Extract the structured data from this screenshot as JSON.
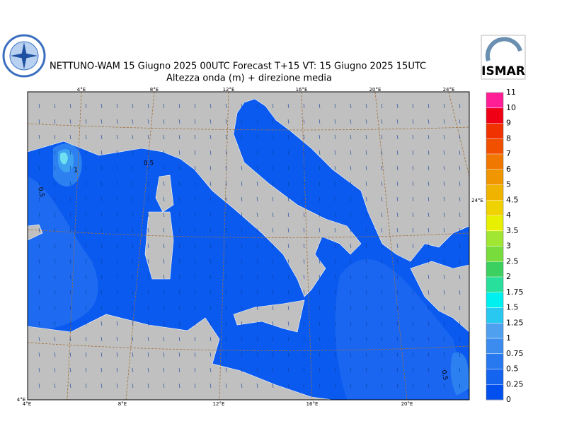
{
  "header": {
    "title": "NETTUNO-WAM  15   Giugno  2025 00UTC Forecast T+15 VT: 15   Giugno  2025 15UTC",
    "subtitle": "Altezza onda (m) + direzione media",
    "logo_right": "ISMAR"
  },
  "graticule": {
    "top": [
      "4°E",
      "8°E",
      "12°E",
      "16°E",
      "20°E",
      "24°E"
    ],
    "bottom": [
      "4°E",
      "8°E",
      "12°E",
      "16°E",
      "20°E"
    ],
    "right": "24°E",
    "corner": "4°E"
  },
  "contour_labels": [
    "0.5",
    "1",
    "0.5",
    "0.5"
  ],
  "colorbar": {
    "ticks": [
      0,
      0.25,
      0.5,
      0.75,
      1,
      1.25,
      1.5,
      1.75,
      2,
      2.5,
      3,
      3.5,
      4,
      4.5,
      5,
      6,
      7,
      8,
      9,
      10,
      11
    ],
    "colors": [
      "#0050f0",
      "#1464f0",
      "#2878f0",
      "#3c8cf0",
      "#50a0f0",
      "#28c8f0",
      "#00f0f0",
      "#28e09c",
      "#3cd060",
      "#78dc3c",
      "#a0e632",
      "#e6f000",
      "#f0d200",
      "#f0b400",
      "#f09600",
      "#f07800",
      "#f05000",
      "#f03200",
      "#f00014",
      "#ff1e96"
    ]
  }
}
